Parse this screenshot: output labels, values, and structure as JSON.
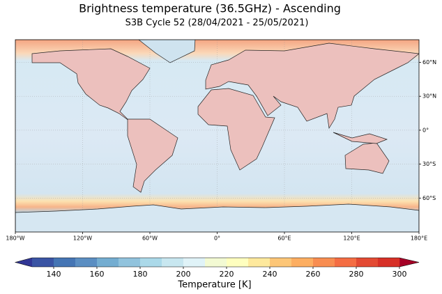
{
  "title": "Brightness temperature (36.5GHz) - Ascending",
  "subtitle": "S3B Cycle 52 (28/04/2021 - 25/05/2021)",
  "map": {
    "xlim": [
      -180,
      180
    ],
    "ylim": [
      -90,
      80
    ],
    "grid": true,
    "xticks": [
      {
        "value": -180,
        "label": "180°W"
      },
      {
        "value": -120,
        "label": "120°W"
      },
      {
        "value": -60,
        "label": "60°W"
      },
      {
        "value": 0,
        "label": "0°"
      },
      {
        "value": 60,
        "label": "60°E"
      },
      {
        "value": 120,
        "label": "120°E"
      },
      {
        "value": 180,
        "label": "180°E"
      }
    ],
    "yticks": [
      {
        "value": 60,
        "label": "60°N"
      },
      {
        "value": 30,
        "label": "30°N"
      },
      {
        "value": 0,
        "label": "0°"
      },
      {
        "value": -30,
        "label": "30°S"
      },
      {
        "value": -60,
        "label": "60°S"
      }
    ]
  },
  "colorbar": {
    "label": "Temperature  [K]",
    "levels": [
      130,
      140,
      150,
      160,
      170,
      180,
      190,
      200,
      210,
      220,
      230,
      240,
      250,
      260,
      270,
      280,
      290,
      300
    ],
    "colors": [
      "#3a54a4",
      "#4575b4",
      "#5b8ec2",
      "#74add1",
      "#91c3dd",
      "#abd9e9",
      "#c8e7f0",
      "#e0f3f8",
      "#f3fad3",
      "#ffffbf",
      "#fee99d",
      "#fdc677",
      "#fdae61",
      "#f88d51",
      "#f46d43",
      "#e34a33",
      "#d73027"
    ],
    "under_color": "#313695",
    "over_color": "#a50026",
    "ticks": [
      140,
      160,
      180,
      200,
      220,
      240,
      260,
      280,
      300
    ]
  }
}
